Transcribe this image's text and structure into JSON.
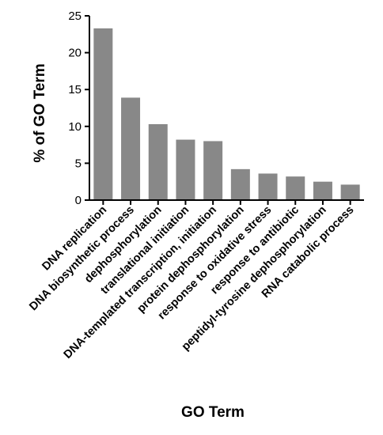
{
  "chart_data": {
    "type": "bar",
    "xlabel": "GO Term",
    "ylabel": "% of GO Term",
    "ylim": [
      0,
      25
    ],
    "yticks": [
      0,
      5,
      10,
      15,
      20,
      25
    ],
    "grid": false,
    "legend": "none",
    "bar_color": "#888888",
    "categories": [
      "DNA replication",
      "DNA biosynthetic process",
      "dephosphorylation",
      "translational initiation",
      "DNA-templated transcription, initiation",
      "protein dephosphorylation",
      "response to oxidative stress",
      "response to antibiotic",
      "peptidyl-tyrosine dephosphorylation",
      "RNA catabolic process"
    ],
    "values": [
      23.3,
      13.9,
      10.3,
      8.2,
      8.0,
      4.2,
      3.6,
      3.2,
      2.5,
      2.1
    ]
  }
}
